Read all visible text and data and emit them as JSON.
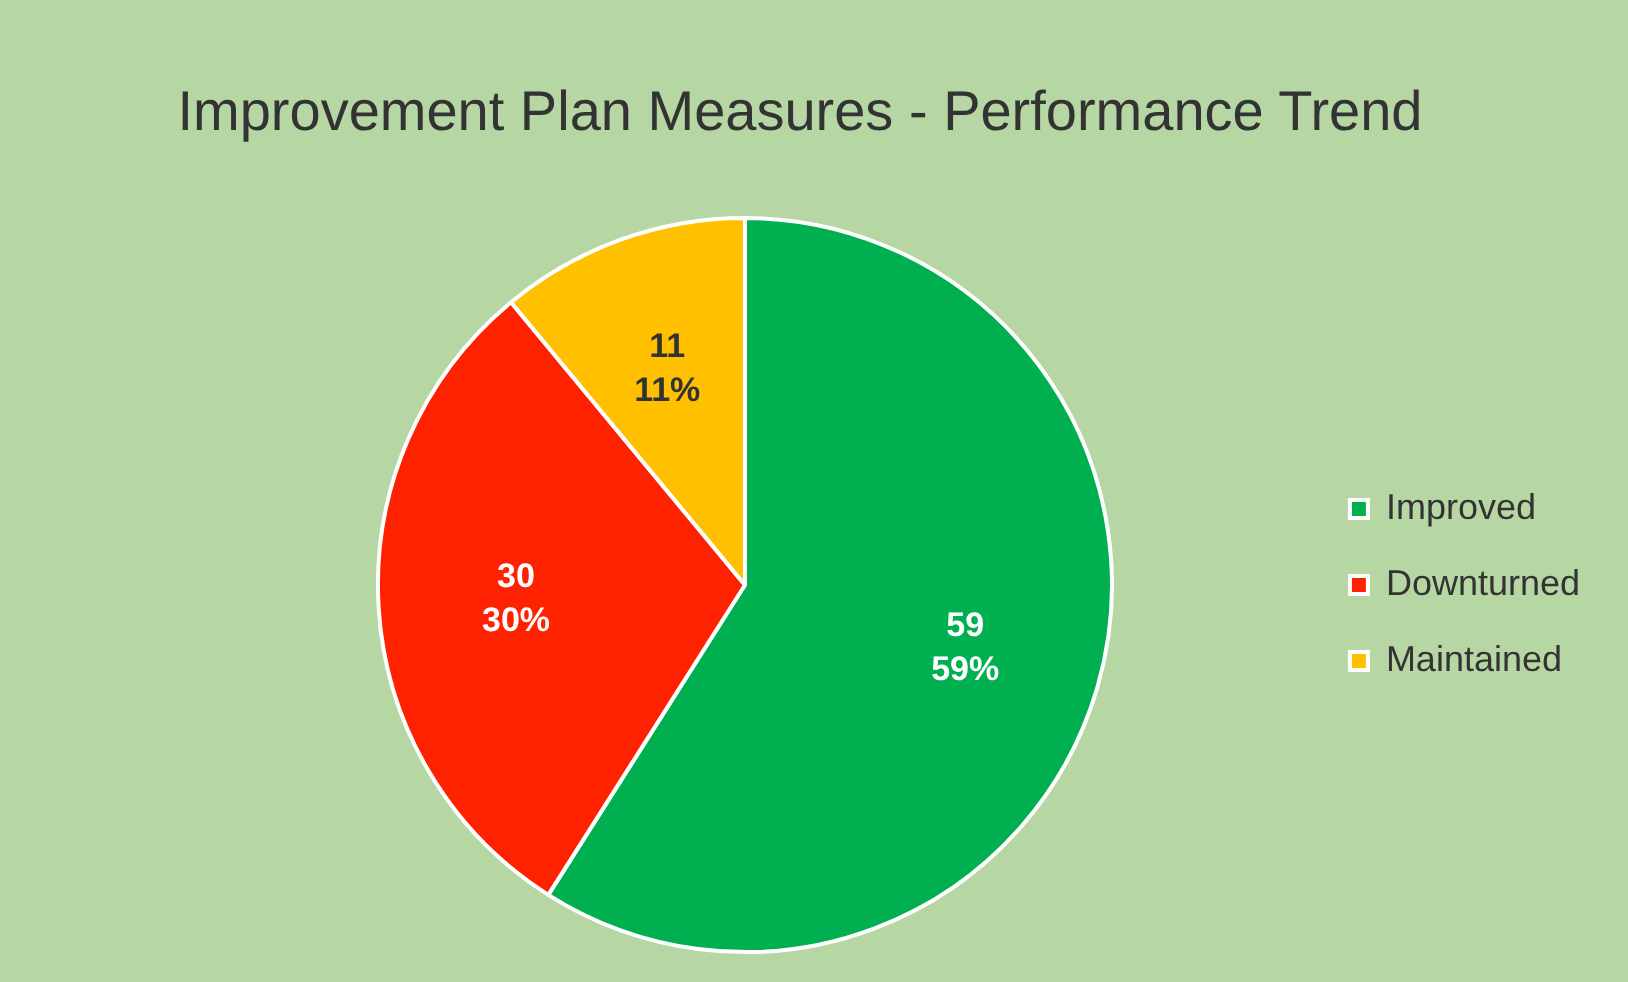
{
  "chart_data": {
    "type": "pie",
    "title": "Improvement Plan Measures - Performance Trend",
    "categories": [
      "Improved",
      "Downturned",
      "Maintained"
    ],
    "values": [
      59,
      30,
      11
    ],
    "colors": [
      "#00b050",
      "#ff2200",
      "#ffc000"
    ],
    "value_labels": [
      "59\n59%",
      "30\n30%",
      "11\n11%"
    ],
    "legend": "right"
  }
}
